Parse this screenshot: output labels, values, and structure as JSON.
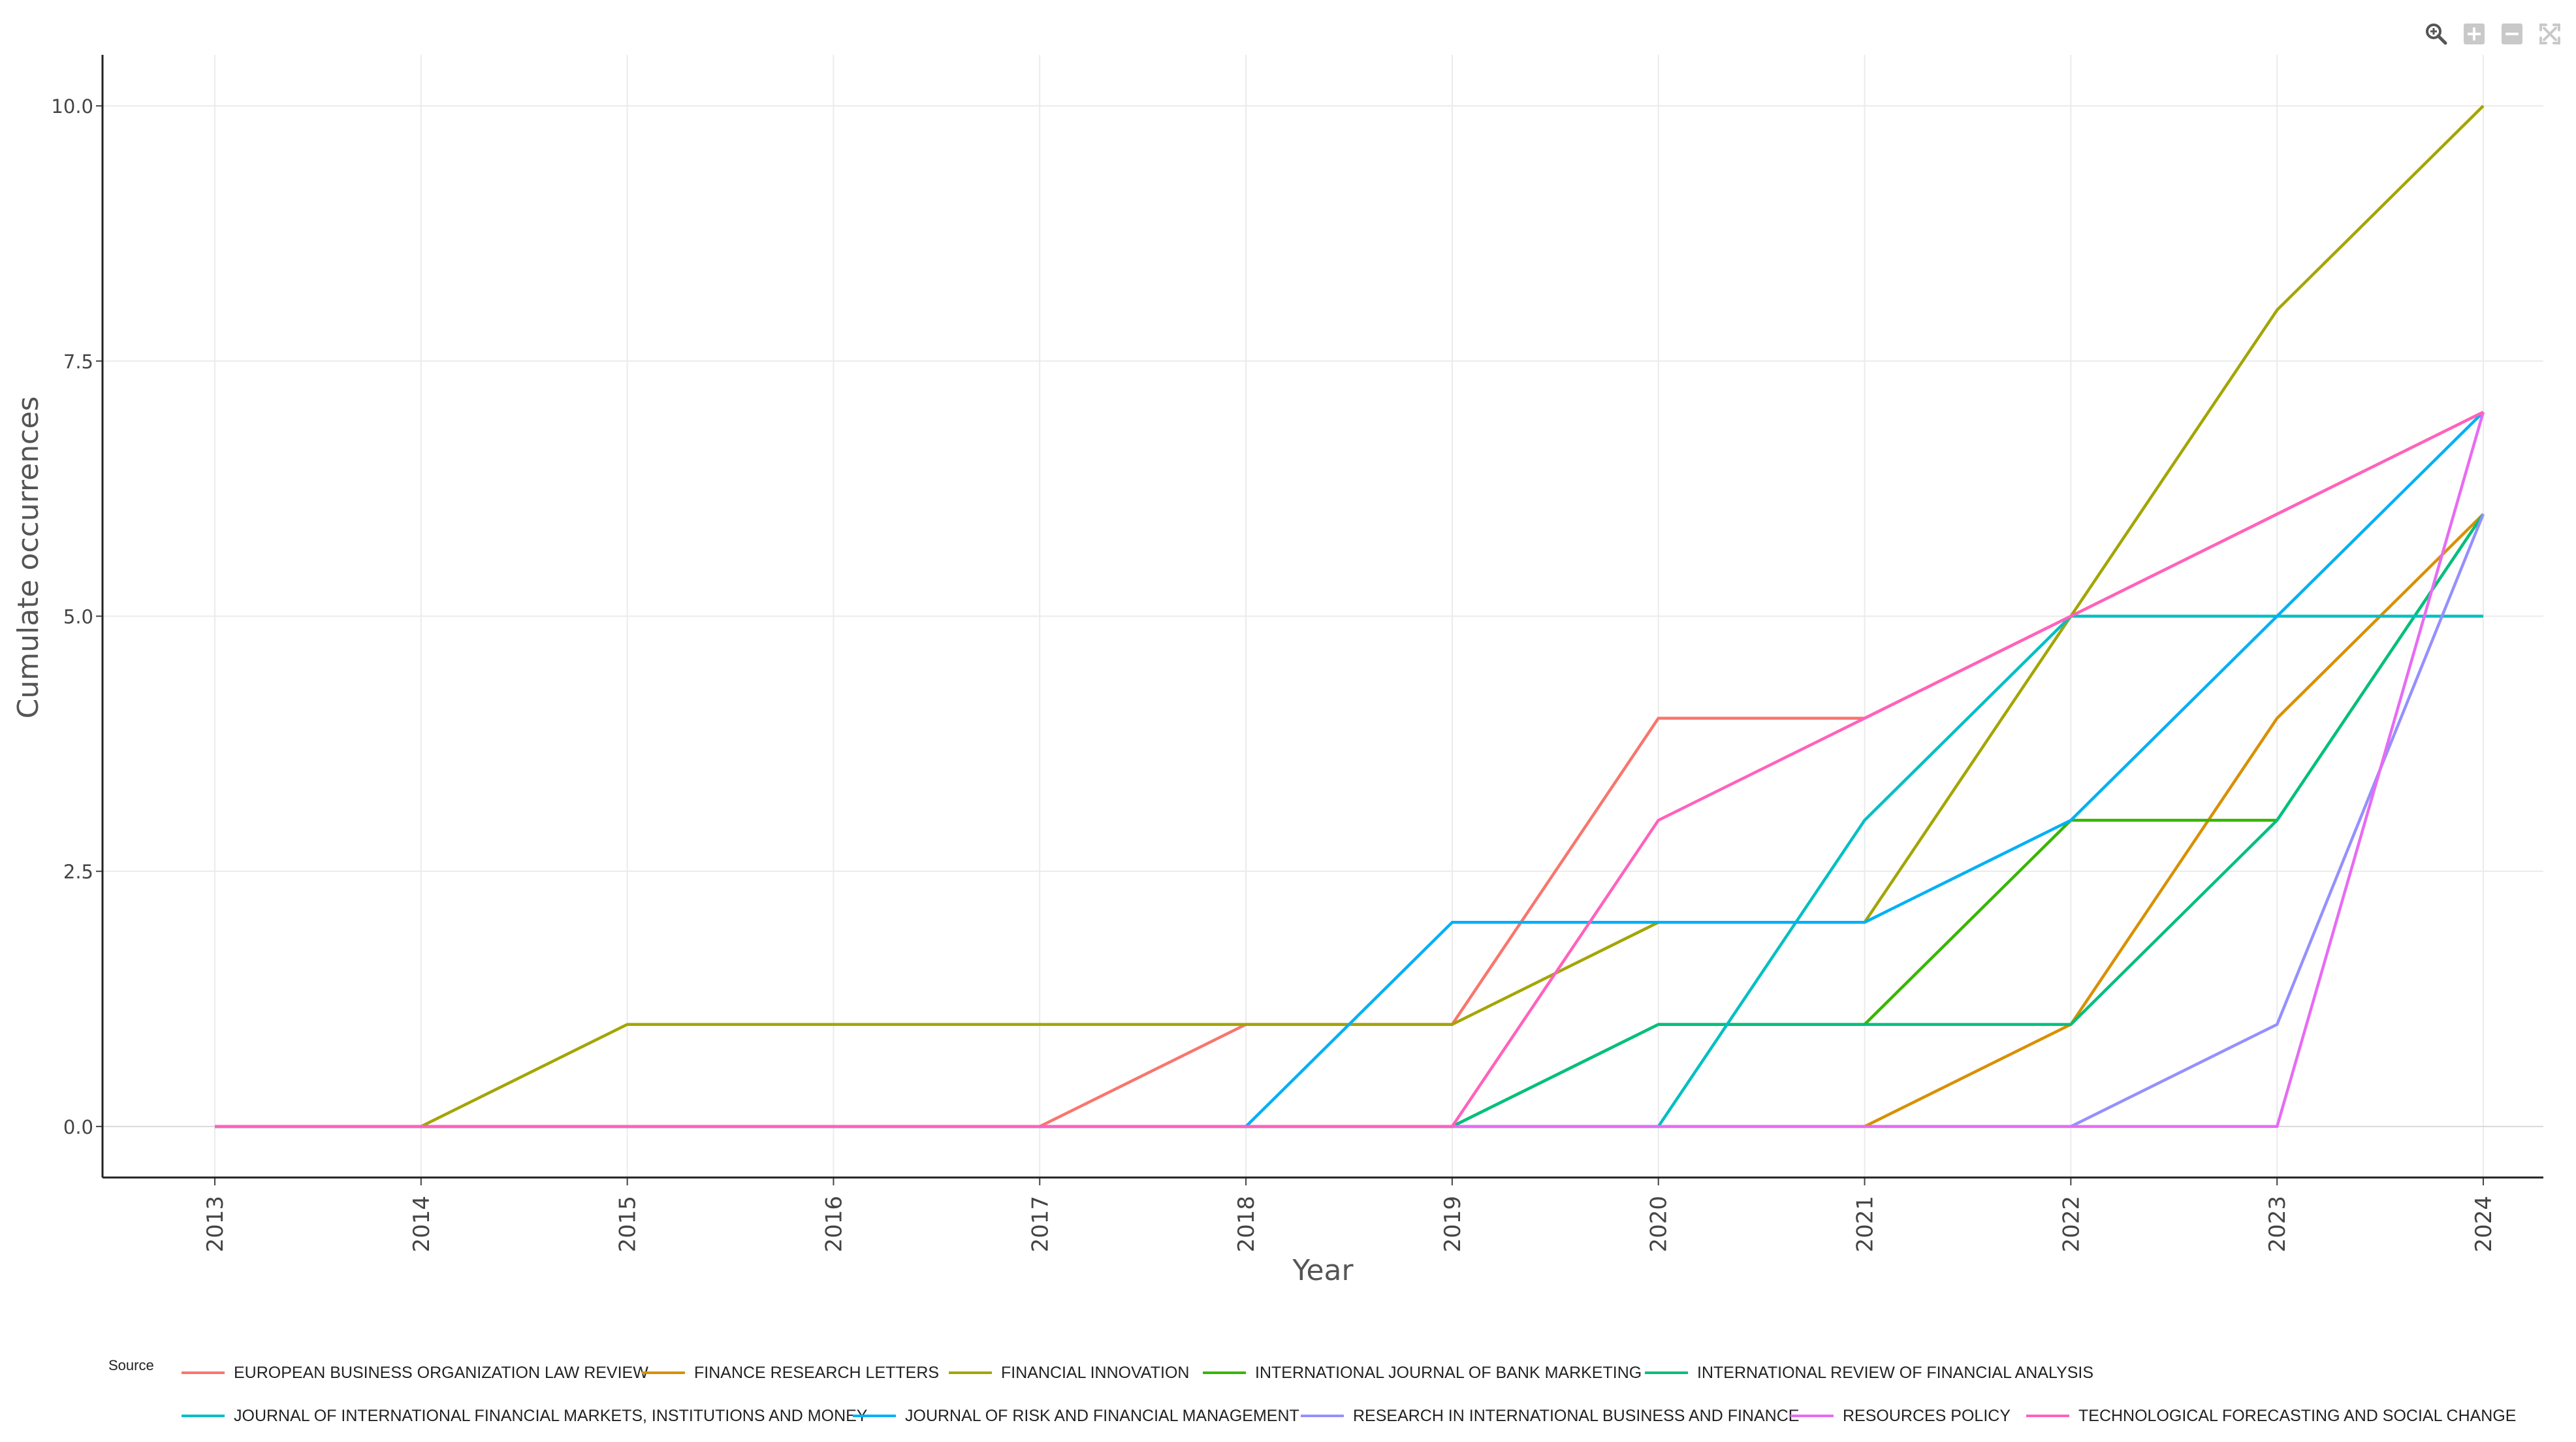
{
  "toolbar": {
    "items": [
      {
        "icon": "zoom-icon"
      },
      {
        "icon": "zoom-in-icon"
      },
      {
        "icon": "zoom-out-icon"
      },
      {
        "icon": "reset-axes-icon"
      }
    ]
  },
  "chart_data": {
    "type": "line",
    "title": "",
    "xlabel": "Year",
    "ylabel": "Cumulate occurrences",
    "ylim": [
      -0.5,
      10.5
    ],
    "yticks": [
      0.0,
      2.5,
      5.0,
      7.5,
      10.0
    ],
    "ytick_labels": [
      "0.0",
      "2.5",
      "5.0",
      "7.5",
      "10.0"
    ],
    "x": [
      2013,
      2014,
      2015,
      2016,
      2017,
      2018,
      2019,
      2020,
      2021,
      2022,
      2023,
      2024
    ],
    "grid": true,
    "legend": {
      "title": "Source",
      "placement": "bottom"
    },
    "series": [
      {
        "name": "EUROPEAN BUSINESS ORGANIZATION LAW REVIEW",
        "color": "#F8766D",
        "values": [
          0,
          0,
          0,
          0,
          0,
          1,
          1,
          4,
          4,
          5,
          6,
          7
        ]
      },
      {
        "name": "FINANCE RESEARCH LETTERS",
        "color": "#D89000",
        "values": [
          0,
          0,
          0,
          0,
          0,
          0,
          0,
          0,
          0,
          1,
          4,
          6
        ]
      },
      {
        "name": "FINANCIAL INNOVATION",
        "color": "#A3A500",
        "values": [
          0,
          0,
          1,
          1,
          1,
          1,
          1,
          2,
          2,
          5,
          8,
          10
        ]
      },
      {
        "name": "INTERNATIONAL JOURNAL OF BANK MARKETING",
        "color": "#39B600",
        "values": [
          0,
          0,
          0,
          0,
          0,
          0,
          0,
          1,
          1,
          3,
          3,
          6
        ]
      },
      {
        "name": "INTERNATIONAL REVIEW OF FINANCIAL ANALYSIS",
        "color": "#00BF7D",
        "values": [
          0,
          0,
          0,
          0,
          0,
          0,
          0,
          1,
          1,
          1,
          3,
          6
        ]
      },
      {
        "name": "JOURNAL OF INTERNATIONAL FINANCIAL MARKETS, INSTITUTIONS AND MONEY",
        "color": "#00BFC4",
        "values": [
          0,
          0,
          0,
          0,
          0,
          0,
          0,
          0,
          3,
          5,
          5,
          5
        ]
      },
      {
        "name": "JOURNAL OF RISK AND FINANCIAL MANAGEMENT",
        "color": "#00B0F6",
        "values": [
          0,
          0,
          0,
          0,
          0,
          0,
          2,
          2,
          2,
          3,
          5,
          7
        ]
      },
      {
        "name": "RESEARCH IN INTERNATIONAL BUSINESS AND FINANCE",
        "color": "#9590FF",
        "values": [
          0,
          0,
          0,
          0,
          0,
          0,
          0,
          0,
          0,
          0,
          1,
          6
        ]
      },
      {
        "name": "RESOURCES POLICY",
        "color": "#E76BF3",
        "values": [
          0,
          0,
          0,
          0,
          0,
          0,
          0,
          0,
          0,
          0,
          0,
          7
        ]
      },
      {
        "name": "TECHNOLOGICAL FORECASTING AND SOCIAL CHANGE",
        "color": "#FF62BC",
        "values": [
          0,
          0,
          0,
          0,
          0,
          0,
          0,
          3,
          4,
          5,
          6,
          7
        ]
      }
    ]
  }
}
